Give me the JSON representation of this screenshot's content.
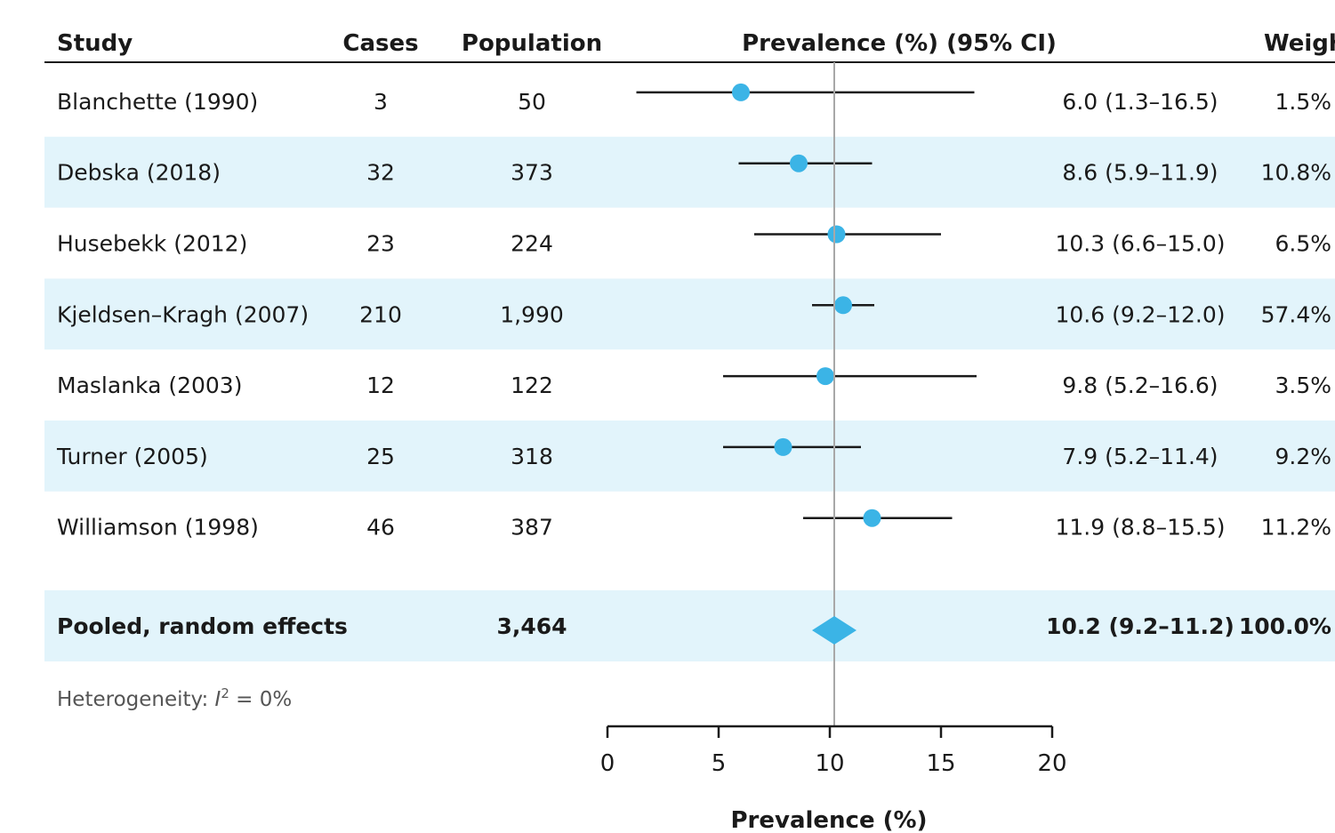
{
  "colors": {
    "marker": "#3bb4e6",
    "band": "#e2f4fb",
    "line": "#1a1a1a",
    "refline": "#a8a8a8"
  },
  "table": {
    "headers": {
      "study": "Study",
      "cases": "Cases",
      "population": "Population",
      "prevalence": "Prevalence (%) (95% CI)",
      "weight": "Weight"
    },
    "heterogeneity": {
      "prefix": "Heterogeneity: ",
      "symbol": "I",
      "sup": "2",
      "suffix": " = 0%"
    }
  },
  "chart_data": {
    "type": "forest",
    "xlabel": "Prevalence (%)",
    "xlim": [
      0,
      20
    ],
    "xticks": [
      0,
      5,
      10,
      15,
      20
    ],
    "xtick_labels": [
      "0",
      "5",
      "10",
      "15",
      "20"
    ],
    "reference_value": 10.2,
    "studies": [
      {
        "study": "Blanchette (1990)",
        "cases": "3",
        "population": "50",
        "est": 6.0,
        "lo": 1.3,
        "hi": 16.5,
        "ci_label": "6.0 (1.3–16.5)",
        "weight": "1.5%"
      },
      {
        "study": "Debska (2018)",
        "cases": "32",
        "population": "373",
        "est": 8.6,
        "lo": 5.9,
        "hi": 11.9,
        "ci_label": "8.6 (5.9–11.9)",
        "weight": "10.8%"
      },
      {
        "study": "Husebekk (2012)",
        "cases": "23",
        "population": "224",
        "est": 10.3,
        "lo": 6.6,
        "hi": 15.0,
        "ci_label": "10.3 (6.6–15.0)",
        "weight": "6.5%"
      },
      {
        "study": "Kjeldsen–Kragh (2007)",
        "cases": "210",
        "population": "1,990",
        "est": 10.6,
        "lo": 9.2,
        "hi": 12.0,
        "ci_label": "10.6 (9.2–12.0)",
        "weight": "57.4%"
      },
      {
        "study": "Maslanka (2003)",
        "cases": "12",
        "population": "122",
        "est": 9.8,
        "lo": 5.2,
        "hi": 16.6,
        "ci_label": "9.8 (5.2–16.6)",
        "weight": "3.5%"
      },
      {
        "study": "Turner (2005)",
        "cases": "25",
        "population": "318",
        "est": 7.9,
        "lo": 5.2,
        "hi": 11.4,
        "ci_label": "7.9 (5.2–11.4)",
        "weight": "9.2%"
      },
      {
        "study": "Williamson (1998)",
        "cases": "46",
        "population": "387",
        "est": 11.9,
        "lo": 8.8,
        "hi": 15.5,
        "ci_label": "11.9 (8.8–15.5)",
        "weight": "11.2%"
      }
    ],
    "pooled": {
      "label": "Pooled, random effects",
      "population": "3,464",
      "est": 10.2,
      "lo": 9.2,
      "hi": 11.2,
      "ci_label": "10.2 (9.2–11.2)",
      "weight": "100.0%"
    }
  }
}
